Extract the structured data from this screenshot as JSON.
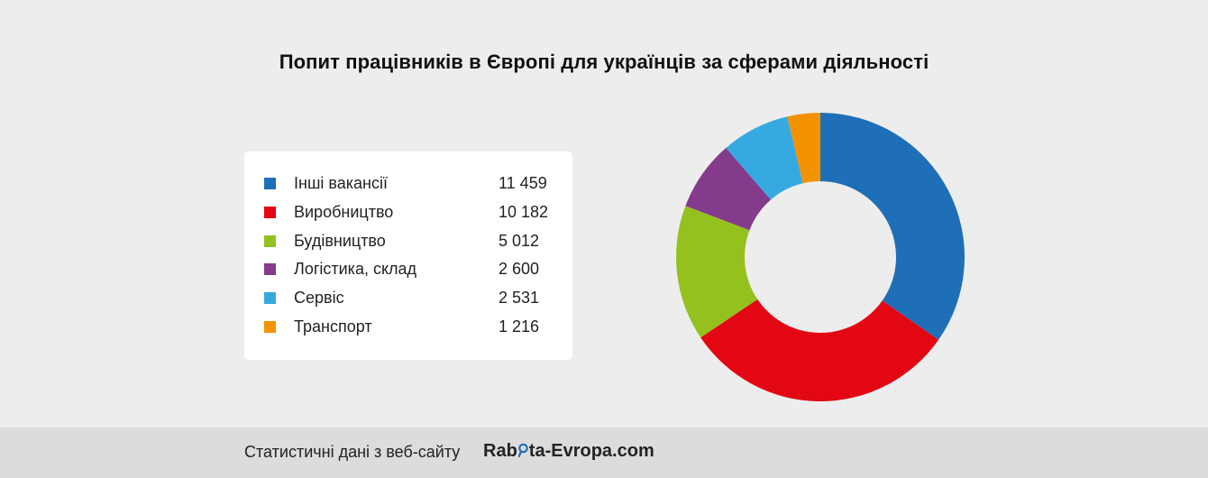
{
  "title": "Попит працівників в Європі для українців за сферами діяльності",
  "legend": [
    {
      "label": "Інші вакансії",
      "value": "11 459",
      "color": "#1f6fb8"
    },
    {
      "label": "Виробництво",
      "value": "10 182",
      "color": "#e30613"
    },
    {
      "label": "Будівництво",
      "value": "5 012",
      "color": "#95c11f"
    },
    {
      "label": "Логістика, склад",
      "value": "2 600",
      "color": "#843b8c"
    },
    {
      "label": "Сервіс",
      "value": "2 531",
      "color": "#36a9e1"
    },
    {
      "label": "Транспорт",
      "value": "1 216",
      "color": "#f39200"
    }
  ],
  "chart_data": {
    "type": "pie",
    "variant": "donut",
    "categories": [
      "Інші вакансії",
      "Виробництво",
      "Будівництво",
      "Логістика, склад",
      "Сервіс",
      "Транспорт"
    ],
    "values": [
      11459,
      10182,
      5012,
      2600,
      2531,
      1216
    ],
    "colors": [
      "#1f6fb8",
      "#e30613",
      "#95c11f",
      "#843b8c",
      "#36a9e1",
      "#f39200"
    ],
    "title": "Попит працівників в Європі для українців за сферами діяльності",
    "start": "top",
    "direction": "clockwise"
  },
  "footer": {
    "text": "Статистичні дані з веб-сайту",
    "brand_before": "Rab",
    "brand_after": "ta-Evropa.com",
    "brand_accent": "#1f6fb8"
  }
}
